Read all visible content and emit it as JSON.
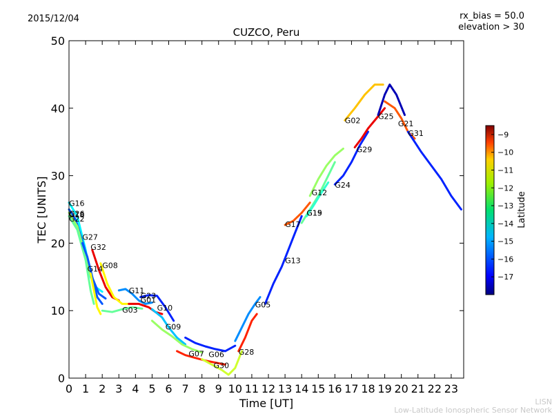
{
  "header": {
    "date": "2015/12/04",
    "rx_bias": "rx_bias = 50.0",
    "elevation": "elevation > 30"
  },
  "credit": {
    "line1": "LISN",
    "line2": "Low-Latitude Ionospheric Sensor Network"
  },
  "colors": {
    "frame": "#000000",
    "background": "#ffffff",
    "credit": "#c8c8c8"
  },
  "chart_data": {
    "type": "line",
    "title": "CUZCO, Peru",
    "xlabel": "Time [UT]",
    "ylabel": "TEC [UNITS]",
    "xlim": [
      0,
      23.75
    ],
    "ylim": [
      0,
      50
    ],
    "xticks": [
      0,
      1,
      2,
      3,
      4,
      5,
      6,
      7,
      8,
      9,
      10,
      11,
      12,
      13,
      14,
      15,
      16,
      17,
      18,
      19,
      20,
      21,
      22,
      23
    ],
    "yticks": [
      0,
      10,
      20,
      30,
      40,
      50
    ],
    "grid": false,
    "colorbar": {
      "label": "Latitude",
      "min": -18,
      "max": -8.5,
      "ticks": [
        -9,
        -10,
        -11,
        -12,
        -13,
        -14,
        -15,
        -16,
        -17
      ],
      "colormap": "jet"
    },
    "series": [
      {
        "name": "G16",
        "lat": -14.5,
        "label_at": [
          0.0,
          25.5
        ],
        "points": [
          [
            0,
            26
          ],
          [
            0.5,
            24
          ],
          [
            1.0,
            19
          ],
          [
            1.3,
            15
          ],
          [
            1.6,
            13.5
          ],
          [
            2.0,
            12.8
          ]
        ]
      },
      {
        "name": "G26",
        "lat": -16,
        "label_at": [
          0.0,
          24.0
        ],
        "points": [
          [
            0,
            25
          ],
          [
            0.4,
            23.5
          ],
          [
            0.9,
            19.5
          ],
          [
            1.3,
            15.5
          ],
          [
            1.8,
            12.5
          ],
          [
            2.2,
            11.8
          ]
        ]
      },
      {
        "name": "G18",
        "lat": -13,
        "label_at": [
          0.0,
          23.8
        ],
        "points": [
          [
            0,
            24.5
          ],
          [
            0.5,
            22.5
          ],
          [
            1.0,
            18.0
          ],
          [
            1.5,
            13.5
          ]
        ]
      },
      {
        "name": "G22",
        "lat": -13.5,
        "label_at": [
          0.0,
          23.2
        ],
        "points": [
          [
            0,
            24
          ],
          [
            0.5,
            22
          ],
          [
            1.0,
            17.5
          ],
          [
            1.3,
            13.0
          ],
          [
            1.5,
            11.0
          ]
        ]
      },
      {
        "name": "G27",
        "lat": -16,
        "label_at": [
          0.8,
          20.5
        ],
        "points": [
          [
            0.8,
            20
          ],
          [
            1.1,
            18
          ],
          [
            1.4,
            15
          ],
          [
            1.7,
            12
          ],
          [
            2.0,
            11
          ]
        ]
      },
      {
        "name": "G32",
        "lat": -9.5,
        "label_at": [
          1.3,
          19.0
        ],
        "points": [
          [
            1.4,
            19
          ],
          [
            1.8,
            16
          ],
          [
            2.2,
            13.5
          ],
          [
            2.6,
            12
          ],
          [
            3.0,
            11.5
          ]
        ]
      },
      {
        "name": "G14",
        "lat": -12,
        "label_at": [
          1.1,
          15.8
        ],
        "points": [
          [
            1.3,
            15.5
          ],
          [
            1.5,
            13
          ],
          [
            1.7,
            10.5
          ],
          [
            1.9,
            9.5
          ]
        ]
      },
      {
        "name": "G08",
        "lat": -12,
        "label_at": [
          2.0,
          16.3
        ],
        "points": [
          [
            1.9,
            17
          ],
          [
            2.3,
            14
          ],
          [
            2.7,
            12
          ],
          [
            3.2,
            11
          ],
          [
            4.0,
            11
          ]
        ]
      },
      {
        "name": "G11",
        "lat": -15.5,
        "label_at": [
          3.6,
          12.6
        ],
        "points": [
          [
            3.0,
            13
          ],
          [
            3.4,
            13.2
          ],
          [
            3.8,
            12.5
          ],
          [
            4.2,
            11.5
          ],
          [
            4.6,
            11.0
          ],
          [
            5.0,
            11.2
          ]
        ]
      },
      {
        "name": "G23",
        "lat": -16.5,
        "label_at": [
          4.3,
          11.8
        ],
        "points": [
          [
            4.3,
            12
          ],
          [
            4.8,
            12.3
          ],
          [
            5.3,
            12.2
          ],
          [
            5.8,
            10.5
          ],
          [
            6.3,
            8.5
          ]
        ]
      },
      {
        "name": "G01",
        "lat": -9.5,
        "label_at": [
          4.3,
          11.2
        ],
        "points": [
          [
            3.6,
            11
          ],
          [
            4.2,
            11
          ],
          [
            4.8,
            10.5
          ],
          [
            5.2,
            9.8
          ],
          [
            5.6,
            9.5
          ]
        ]
      },
      {
        "name": "G03",
        "lat": -13.5,
        "label_at": [
          3.2,
          9.7
        ],
        "points": [
          [
            2.0,
            10
          ],
          [
            2.6,
            9.8
          ],
          [
            3.2,
            10.2
          ],
          [
            3.8,
            10.5
          ],
          [
            4.4,
            10.3
          ]
        ]
      },
      {
        "name": "G10",
        "lat": -15,
        "label_at": [
          5.3,
          10.0
        ],
        "points": [
          [
            5.0,
            10.2
          ],
          [
            5.6,
            9.0
          ],
          [
            6.0,
            7.5
          ],
          [
            6.5,
            6.0
          ],
          [
            7.0,
            5.0
          ]
        ]
      },
      {
        "name": "G09",
        "lat": -13,
        "label_at": [
          5.8,
          7.2
        ],
        "points": [
          [
            5.0,
            8.5
          ],
          [
            5.6,
            7.2
          ],
          [
            6.2,
            6.2
          ],
          [
            6.8,
            5.0
          ],
          [
            7.4,
            4.3
          ],
          [
            8.0,
            3.8
          ]
        ]
      },
      {
        "name": "G07",
        "lat": -10,
        "label_at": [
          7.2,
          3.2
        ],
        "points": [
          [
            6.5,
            4.0
          ],
          [
            7.0,
            3.4
          ],
          [
            7.6,
            3.0
          ],
          [
            8.2,
            2.6
          ],
          [
            8.8,
            2.3
          ],
          [
            9.4,
            2.0
          ]
        ]
      },
      {
        "name": "G06",
        "lat": -16.5,
        "label_at": [
          8.4,
          3.1
        ],
        "points": [
          [
            7.0,
            6.0
          ],
          [
            7.6,
            5.2
          ],
          [
            8.2,
            4.7
          ],
          [
            8.8,
            4.3
          ],
          [
            9.4,
            4.0
          ],
          [
            10.0,
            4.8
          ]
        ]
      },
      {
        "name": "G30",
        "lat": -12.5,
        "label_at": [
          8.7,
          1.5
        ],
        "points": [
          [
            8.0,
            2.8
          ],
          [
            8.6,
            2.0
          ],
          [
            9.2,
            1.2
          ],
          [
            9.6,
            0.5
          ],
          [
            10.0,
            1.5
          ],
          [
            10.4,
            4.0
          ]
        ]
      },
      {
        "name": "G28",
        "lat": -10,
        "label_at": [
          10.2,
          3.5
        ],
        "points": [
          [
            10.2,
            4.0
          ],
          [
            10.6,
            6.0
          ],
          [
            11.0,
            8.5
          ],
          [
            11.3,
            9.5
          ]
        ]
      },
      {
        "name": "G05",
        "lat": -15.5,
        "label_at": [
          11.2,
          10.5
        ],
        "points": [
          [
            10.0,
            5.5
          ],
          [
            10.4,
            7.5
          ],
          [
            10.8,
            9.5
          ],
          [
            11.2,
            11.0
          ],
          [
            11.5,
            12.0
          ]
        ]
      },
      {
        "name": "G13",
        "lat": -16.5,
        "label_at": [
          13.0,
          17.0
        ],
        "points": [
          [
            11.8,
            11.0
          ],
          [
            12.3,
            14.0
          ],
          [
            12.8,
            16.5
          ],
          [
            13.2,
            19.0
          ],
          [
            13.6,
            21.5
          ],
          [
            14.0,
            24.0
          ]
        ]
      },
      {
        "name": "G17",
        "lat": -10.5,
        "label_at": [
          13.0,
          22.4
        ],
        "points": [
          [
            13.0,
            22.7
          ],
          [
            13.5,
            23.3
          ],
          [
            14.0,
            24.5
          ],
          [
            14.5,
            26.0
          ]
        ]
      },
      {
        "name": "G19",
        "lat": -13.5,
        "label_at": [
          14.3,
          24.1
        ],
        "points": [
          [
            14.0,
            23.0
          ],
          [
            14.5,
            25.0
          ],
          [
            15.0,
            27.0
          ],
          [
            15.5,
            29.5
          ],
          [
            16.0,
            32.0
          ]
        ]
      },
      {
        "name": "G15",
        "lat": -14,
        "label_at": [
          14.3,
          24.1
        ],
        "points": [
          [
            14.3,
            24.0
          ],
          [
            14.7,
            25.5
          ],
          [
            15.2,
            27.5
          ],
          [
            15.6,
            29.0
          ]
        ]
      },
      {
        "name": "G12",
        "lat": -13,
        "label_at": [
          14.6,
          27.1
        ],
        "points": [
          [
            14.5,
            27.0
          ],
          [
            15.0,
            29.5
          ],
          [
            15.5,
            31.5
          ],
          [
            16.0,
            33.0
          ],
          [
            16.5,
            34.0
          ]
        ]
      },
      {
        "name": "G24",
        "lat": -16.5,
        "label_at": [
          16.0,
          28.2
        ],
        "points": [
          [
            16.0,
            28.7
          ],
          [
            16.5,
            30.0
          ],
          [
            17.0,
            32.0
          ],
          [
            17.5,
            34.5
          ],
          [
            18.0,
            36.5
          ]
        ]
      },
      {
        "name": "G02",
        "lat": -11.5,
        "label_at": [
          16.6,
          37.8
        ],
        "points": [
          [
            16.6,
            38.2
          ],
          [
            17.2,
            40.0
          ],
          [
            17.8,
            42.0
          ],
          [
            18.4,
            43.5
          ],
          [
            18.9,
            43.5
          ]
        ]
      },
      {
        "name": "G29",
        "lat": -9.5,
        "label_at": [
          17.3,
          33.5
        ],
        "points": [
          [
            17.2,
            34.2
          ],
          [
            17.6,
            35.5
          ],
          [
            18.0,
            37.0
          ],
          [
            18.5,
            38.5
          ],
          [
            19.0,
            40.0
          ]
        ]
      },
      {
        "name": "G25",
        "lat": -17.5,
        "label_at": [
          18.6,
          38.4
        ],
        "points": [
          [
            18.6,
            39.0
          ],
          [
            19.0,
            42.0
          ],
          [
            19.3,
            43.5
          ],
          [
            19.7,
            42.0
          ],
          [
            20.2,
            39.0
          ]
        ]
      },
      {
        "name": "G21",
        "lat": -10.5,
        "label_at": [
          19.8,
          37.3
        ],
        "points": [
          [
            19.0,
            41.0
          ],
          [
            19.6,
            40.0
          ],
          [
            20.0,
            38.5
          ],
          [
            20.4,
            36.5
          ],
          [
            20.8,
            35.5
          ]
        ]
      },
      {
        "name": "G31",
        "lat": -16.5,
        "label_at": [
          20.4,
          35.9
        ],
        "points": [
          [
            20.4,
            36.5
          ],
          [
            20.8,
            35.0
          ],
          [
            21.2,
            33.5
          ],
          [
            21.8,
            31.5
          ],
          [
            22.4,
            29.5
          ],
          [
            23.0,
            27.0
          ],
          [
            23.6,
            25.0
          ]
        ]
      }
    ]
  }
}
